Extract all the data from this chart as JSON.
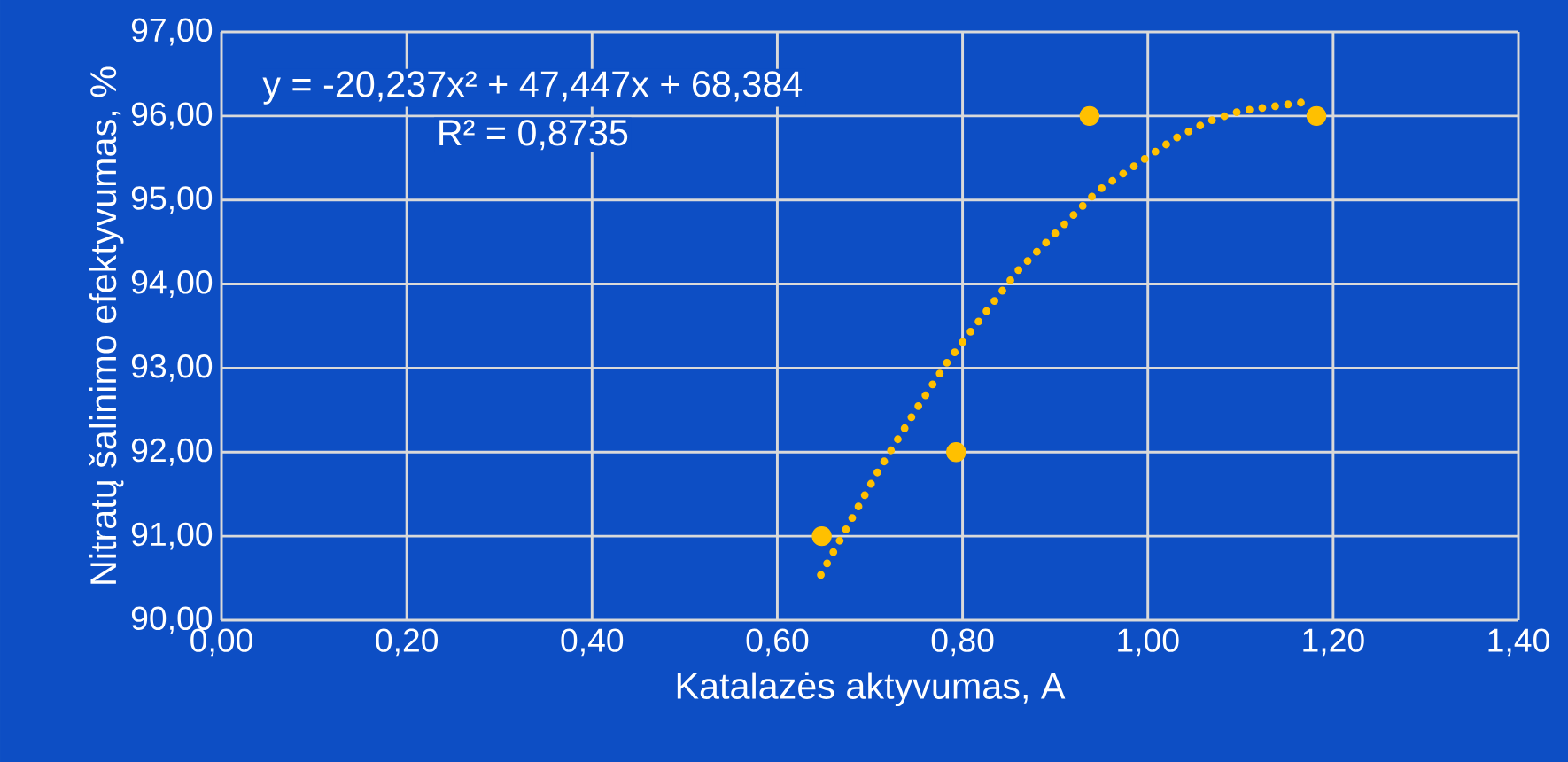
{
  "chart_data": {
    "type": "scatter",
    "xlabel": "Katalazės aktyvumas, A",
    "ylabel": "Nitratų šalinimo efektyvumas, %",
    "annotations": [
      "y = -20,237x² + 47,447x + 68,384",
      "R² = 0,8735"
    ],
    "series": [
      {
        "color": "#ffc000",
        "marker": "circle",
        "x": [
          0.648,
          0.793,
          0.937,
          1.182
        ],
        "values": [
          91,
          92,
          96,
          96
        ]
      },
      {
        "type": "line",
        "color": "#ffc000",
        "marker": "none",
        "line_style": "dotted",
        "x": [
          0.647,
          0.707,
          0.75,
          0.784,
          0.859,
          0.946,
          1.029,
          1.064,
          1.1,
          1.179
        ],
        "values": [
          90.54,
          91.74,
          92.51,
          93.08,
          94.15,
          95.11,
          95.73,
          95.93,
          96.06,
          96.18
        ]
      }
    ],
    "xlim": [
      0,
      1.4
    ],
    "ylim": [
      90,
      97
    ],
    "xticks": [
      {
        "value": 0,
        "label": "0,00"
      },
      {
        "value": 0.2,
        "label": "0,20"
      },
      {
        "value": 0.4,
        "label": "0,40"
      },
      {
        "value": 0.6,
        "label": "0,60"
      },
      {
        "value": 0.8,
        "label": "0,80"
      },
      {
        "value": 1.0,
        "label": "1,00"
      },
      {
        "value": 1.2,
        "label": "1,20"
      },
      {
        "value": 1.4,
        "label": "1,40"
      }
    ],
    "yticks": [
      {
        "value": 90,
        "label": "90,00"
      },
      {
        "value": 91,
        "label": "91,00"
      },
      {
        "value": 92,
        "label": "92,00"
      },
      {
        "value": 93,
        "label": "93,00"
      },
      {
        "value": 94,
        "label": "94,00"
      },
      {
        "value": 95,
        "label": "95,00"
      },
      {
        "value": 96,
        "label": "96,00"
      },
      {
        "value": 97,
        "label": "97,00"
      }
    ],
    "grid": true
  }
}
